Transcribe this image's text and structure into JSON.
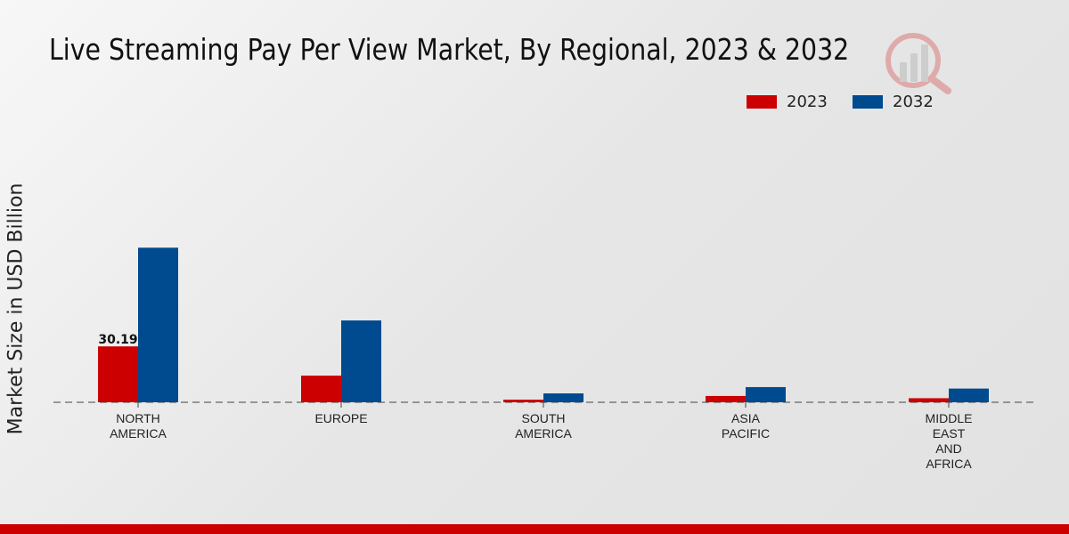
{
  "chart_data": {
    "type": "bar",
    "title": "Live Streaming Pay Per View Market, By Regional, 2023 & 2032",
    "xlabel": "",
    "ylabel": "Market Size in USD Billion",
    "ylim": [
      0,
      100
    ],
    "legend_position": "top-right",
    "categories": [
      [
        "NORTH",
        "AMERICA"
      ],
      [
        "EUROPE"
      ],
      [
        "SOUTH",
        "AMERICA"
      ],
      [
        "ASIA",
        "PACIFIC"
      ],
      [
        "MIDDLE",
        "EAST",
        "AND",
        "AFRICA"
      ]
    ],
    "series": [
      {
        "name": "2023",
        "color": "#cc0000",
        "values": [
          30.19,
          14.4,
          1.4,
          3.4,
          2.2
        ]
      },
      {
        "name": "2032",
        "color": "#004a8f",
        "values": [
          83.5,
          44.2,
          4.8,
          8.2,
          7.4
        ]
      }
    ],
    "annotations": [
      {
        "series": "2023",
        "category": "NORTH AMERICA",
        "text": "30.19"
      }
    ]
  }
}
